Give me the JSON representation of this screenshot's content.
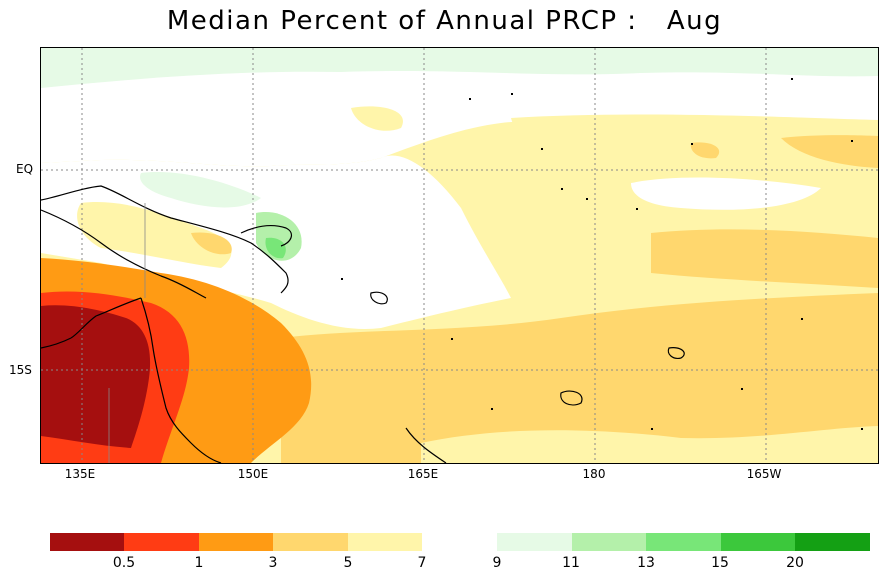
{
  "title": "Median Percent of Annual PRCP :   Aug",
  "map": {
    "y_labels": [
      "EQ",
      "15S"
    ],
    "x_labels": [
      "135E",
      "150E",
      "165E",
      "180",
      "165W"
    ]
  },
  "legend": {
    "dry_levels": [
      "0.5",
      "1",
      "3",
      "5",
      "7"
    ],
    "wet_levels": [
      "9",
      "11",
      "13",
      "15",
      "20"
    ],
    "dry_colors": [
      "#a50f0f",
      "#ff3c14",
      "#ff9b14",
      "#ffd76e",
      "#fff5aa"
    ],
    "wet_colors": [
      "#e6fae6",
      "#b4f0aa",
      "#78e678",
      "#3cc83c",
      "#14a014"
    ]
  }
}
